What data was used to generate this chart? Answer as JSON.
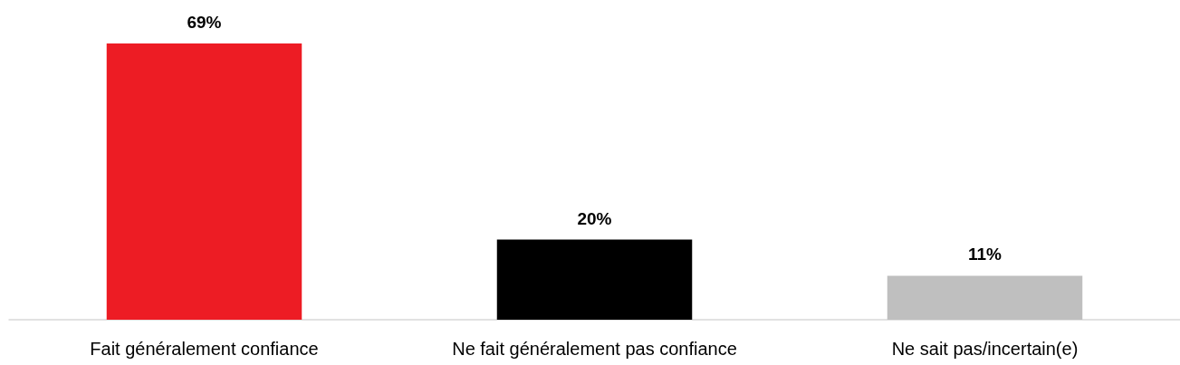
{
  "chart_data": {
    "type": "bar",
    "categories": [
      "Fait généralement confiance",
      "Ne fait généralement pas confiance",
      "Ne sait pas/incertain(e)"
    ],
    "values": [
      69,
      20,
      11
    ],
    "value_labels": [
      "69%",
      "20%",
      "11%"
    ],
    "colors": [
      "#ed1c24",
      "#000000",
      "#bfbfbf"
    ],
    "grid": false
  }
}
